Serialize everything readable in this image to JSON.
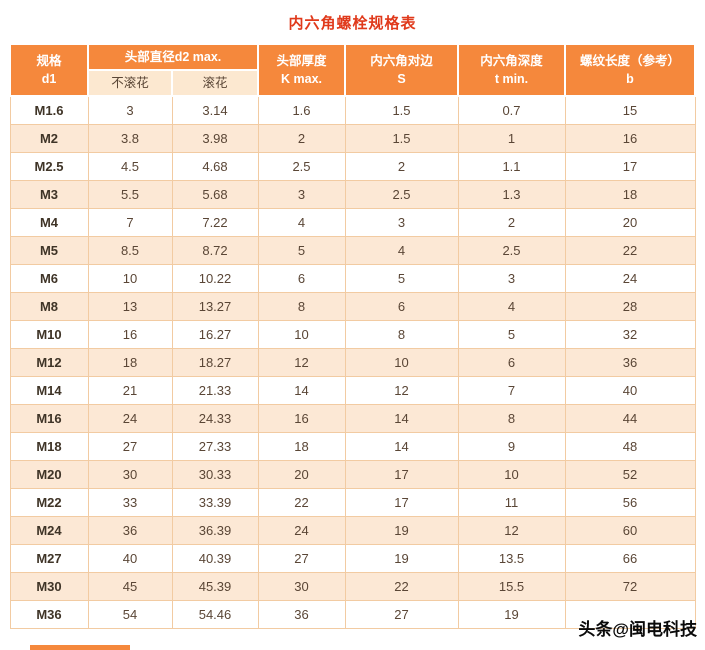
{
  "title": "内六角螺栓规格表",
  "watermark": "头条@闽电科技",
  "colors": {
    "title_color": "#e0391b",
    "header_bg": "#f5883c",
    "header_text": "#ffffff",
    "subheader_bg": "#fce8d0",
    "stripe_bg": "#fce8d5",
    "border": "#f2cba2",
    "cell_text": "#5a4636"
  },
  "header": {
    "spec_line1": "规格",
    "spec_line2": "d1",
    "head_diameter": "头部直径d2 max.",
    "sub_no_knurl": "不滚花",
    "sub_knurl": "滚花",
    "thickness_line1": "头部厚度",
    "thickness_line2": "K max.",
    "hex_flats_line1": "内六角对边",
    "hex_flats_line2": "S",
    "hex_depth_line1": "内六角深度",
    "hex_depth_line2": "t min.",
    "thread_line1": "螺纹长度（参考）",
    "thread_line2": "b"
  },
  "chart_data": {
    "type": "table",
    "title": "内六角螺栓规格表",
    "columns": [
      "规格 d1",
      "头部直径d2 max. 不滚花",
      "头部直径d2 max. 滚花",
      "头部厚度 K max.",
      "内六角对边 S",
      "内六角深度 t min.",
      "螺纹长度（参考） b"
    ],
    "rows": [
      [
        "M1.6",
        "3",
        "3.14",
        "1.6",
        "1.5",
        "0.7",
        "15"
      ],
      [
        "M2",
        "3.8",
        "3.98",
        "2",
        "1.5",
        "1",
        "16"
      ],
      [
        "M2.5",
        "4.5",
        "4.68",
        "2.5",
        "2",
        "1.1",
        "17"
      ],
      [
        "M3",
        "5.5",
        "5.68",
        "3",
        "2.5",
        "1.3",
        "18"
      ],
      [
        "M4",
        "7",
        "7.22",
        "4",
        "3",
        "2",
        "20"
      ],
      [
        "M5",
        "8.5",
        "8.72",
        "5",
        "4",
        "2.5",
        "22"
      ],
      [
        "M6",
        "10",
        "10.22",
        "6",
        "5",
        "3",
        "24"
      ],
      [
        "M8",
        "13",
        "13.27",
        "8",
        "6",
        "4",
        "28"
      ],
      [
        "M10",
        "16",
        "16.27",
        "10",
        "8",
        "5",
        "32"
      ],
      [
        "M12",
        "18",
        "18.27",
        "12",
        "10",
        "6",
        "36"
      ],
      [
        "M14",
        "21",
        "21.33",
        "14",
        "12",
        "7",
        "40"
      ],
      [
        "M16",
        "24",
        "24.33",
        "16",
        "14",
        "8",
        "44"
      ],
      [
        "M18",
        "27",
        "27.33",
        "18",
        "14",
        "9",
        "48"
      ],
      [
        "M20",
        "30",
        "30.33",
        "20",
        "17",
        "10",
        "52"
      ],
      [
        "M22",
        "33",
        "33.39",
        "22",
        "17",
        "11",
        "56"
      ],
      [
        "M24",
        "36",
        "36.39",
        "24",
        "19",
        "12",
        "60"
      ],
      [
        "M27",
        "40",
        "40.39",
        "27",
        "19",
        "13.5",
        "66"
      ],
      [
        "M30",
        "45",
        "45.39",
        "30",
        "22",
        "15.5",
        "72"
      ],
      [
        "M36",
        "54",
        "54.46",
        "36",
        "27",
        "19",
        ""
      ]
    ]
  }
}
